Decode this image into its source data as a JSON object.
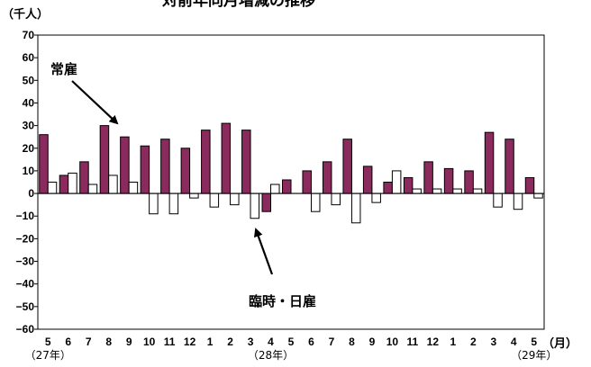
{
  "chart_data": {
    "type": "bar",
    "title": "対前年同月増減の推移",
    "ylabel": "（千人）",
    "xlabel": "（月）",
    "ylim": [
      -60,
      70
    ],
    "yticks": [
      70,
      60,
      50,
      40,
      30,
      20,
      10,
      0,
      -10,
      -20,
      -30,
      -40,
      -50,
      -60
    ],
    "categories": [
      "5",
      "6",
      "7",
      "8",
      "9",
      "10",
      "11",
      "12",
      "1",
      "2",
      "3",
      "4",
      "5",
      "6",
      "7",
      "8",
      "9",
      "10",
      "11",
      "12",
      "1",
      "2",
      "3",
      "4",
      "5"
    ],
    "year_labels": [
      {
        "label": "（27年）",
        "at_index": 0
      },
      {
        "label": "（28年）",
        "at_index": 11
      },
      {
        "label": "（29年）",
        "at_index": 24
      }
    ],
    "series": [
      {
        "name": "常雇",
        "color": "#8b2a5c",
        "values": [
          26,
          8,
          14,
          30,
          25,
          21,
          24,
          20,
          28,
          31,
          28,
          -8,
          6,
          10,
          14,
          24,
          12,
          5,
          7,
          14,
          11,
          10,
          27,
          24,
          7
        ]
      },
      {
        "name": "臨時・日雇",
        "color": "#ffffff",
        "values": [
          5,
          9,
          4,
          8,
          5,
          -9,
          -9,
          -2,
          -6,
          -5,
          -11,
          4,
          0,
          -8,
          -5,
          -13,
          -4,
          10,
          2,
          2,
          2,
          2,
          -6,
          -7,
          -2
        ]
      }
    ],
    "grid": false,
    "legend": "annotations"
  }
}
